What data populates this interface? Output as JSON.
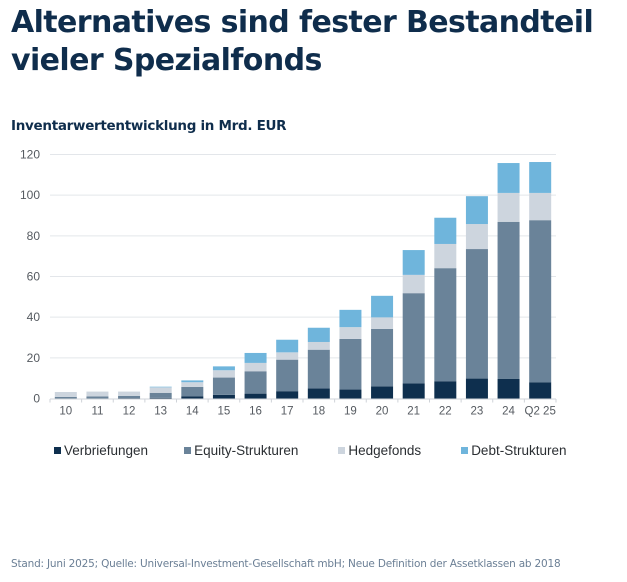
{
  "header": {
    "title": "Alternatives sind fester Bestandteil vieler Spezialfonds",
    "subtitle": "Inventarwertentwicklung in Mrd. EUR"
  },
  "footer": {
    "note": "Stand: Juni 2025; Quelle: Universal-Investment-Gesellschaft mbH; Neue Definition der Assetklassen ab 2018"
  },
  "chart_data": {
    "type": "bar",
    "stacked": true,
    "title": "Inventarwertentwicklung in Mrd. EUR",
    "xlabel": "",
    "ylabel": "",
    "ylim": [
      0,
      120
    ],
    "yticks": [
      0,
      20,
      40,
      60,
      80,
      100,
      120
    ],
    "grid": true,
    "legend_position": "bottom",
    "categories": [
      "10",
      "11",
      "12",
      "13",
      "14",
      "15",
      "16",
      "17",
      "18",
      "19",
      "20",
      "21",
      "22",
      "23",
      "24",
      "Q2 25"
    ],
    "series": [
      {
        "name": "Verbriefungen",
        "color": "#0e2f4e",
        "values": [
          0,
          0,
          0.2,
          0.3,
          1.0,
          1.8,
          2.4,
          3.6,
          4.9,
          4.4,
          6.0,
          7.4,
          8.5,
          9.8,
          9.6,
          8.0
        ]
      },
      {
        "name": "Equity-Strukturen",
        "color": "#6a8399",
        "values": [
          0.8,
          1.0,
          1.1,
          2.5,
          4.7,
          8.5,
          11.0,
          15.5,
          19.1,
          24.9,
          28.2,
          44.4,
          55.6,
          63.7,
          77.3,
          79.7
        ]
      },
      {
        "name": "Hedgefonds",
        "color": "#cdd5de",
        "values": [
          2.4,
          2.4,
          2.1,
          2.7,
          2.3,
          3.6,
          4.1,
          3.6,
          3.8,
          5.8,
          5.7,
          9.0,
          11.9,
          12.3,
          14.2,
          13.4
        ]
      },
      {
        "name": "Debt-Strukturen",
        "color": "#6fb5dc",
        "values": [
          0,
          0,
          0,
          0.3,
          0.9,
          1.9,
          4.9,
          6.2,
          7.0,
          8.5,
          10.6,
          12.2,
          12.9,
          13.7,
          14.7,
          15.2
        ]
      }
    ],
    "gridline_color": "#e3e6ea",
    "axis_color": "#cfd3d8"
  }
}
